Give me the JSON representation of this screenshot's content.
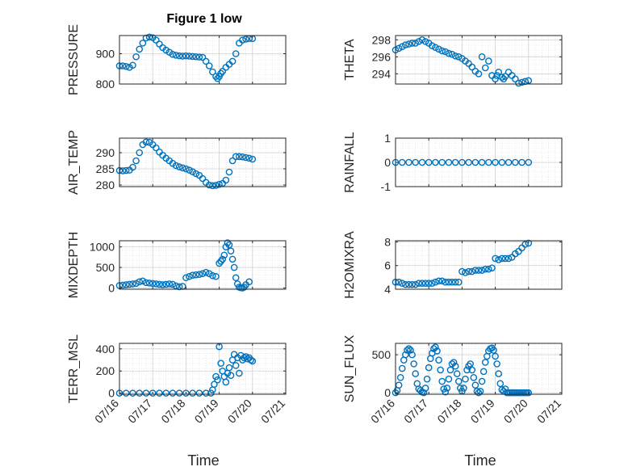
{
  "figure": {
    "title": "Figure 1 low",
    "marker_color": "#0072BD",
    "grid_color": "#DCDCDC",
    "x_tick_labels": [
      "07/16",
      "07/17",
      "07/18",
      "07/19",
      "07/20",
      "07/21"
    ],
    "xlabel": "Time"
  },
  "chart_data": [
    {
      "type": "scatter",
      "ylabel": "PRESSURE",
      "title": "Figure 1 low",
      "xlim": [
        16,
        21
      ],
      "ylim": [
        800,
        960
      ],
      "yticks": [
        800,
        900
      ],
      "x": [
        16.0,
        16.1,
        16.2,
        16.3,
        16.4,
        16.5,
        16.6,
        16.7,
        16.8,
        16.9,
        17.0,
        17.1,
        17.2,
        17.3,
        17.4,
        17.5,
        17.6,
        17.7,
        17.8,
        17.9,
        18.0,
        18.1,
        18.2,
        18.3,
        18.4,
        18.5,
        18.6,
        18.7,
        18.8,
        18.9,
        18.95,
        19.0,
        19.05,
        19.1,
        19.2,
        19.3,
        19.4,
        19.5,
        19.6,
        19.7,
        19.8,
        19.9,
        20.0
      ],
      "y": [
        860,
        860,
        858,
        855,
        862,
        890,
        915,
        935,
        952,
        955,
        953,
        945,
        932,
        920,
        912,
        905,
        898,
        895,
        893,
        892,
        893,
        892,
        891,
        890,
        889,
        888,
        875,
        860,
        840,
        825,
        818,
        825,
        835,
        842,
        855,
        865,
        875,
        900,
        935,
        945,
        948,
        950,
        950
      ]
    },
    {
      "type": "scatter",
      "ylabel": "THETA",
      "xlim": [
        16,
        21
      ],
      "ylim": [
        292.8,
        298.5
      ],
      "yticks": [
        294,
        296,
        298
      ],
      "x": [
        16.0,
        16.1,
        16.2,
        16.3,
        16.4,
        16.5,
        16.6,
        16.7,
        16.8,
        16.9,
        17.0,
        17.1,
        17.2,
        17.3,
        17.4,
        17.5,
        17.6,
        17.7,
        17.8,
        17.9,
        18.0,
        18.1,
        18.2,
        18.3,
        18.4,
        18.5,
        18.6,
        18.7,
        18.8,
        18.9,
        19.0,
        19.05,
        19.1,
        19.2,
        19.25,
        19.3,
        19.4,
        19.5,
        19.6,
        19.7,
        19.8,
        19.9,
        20.0
      ],
      "y": [
        296.8,
        297.0,
        297.2,
        297.4,
        297.5,
        297.6,
        297.6,
        297.8,
        298.0,
        297.8,
        297.6,
        297.3,
        297.1,
        296.9,
        296.7,
        296.6,
        296.4,
        296.3,
        296.1,
        296.0,
        295.8,
        295.5,
        295.2,
        294.8,
        294.3,
        294.0,
        296.0,
        294.7,
        295.5,
        293.8,
        293.4,
        293.8,
        294.2,
        293.6,
        293.4,
        293.7,
        294.2,
        293.8,
        293.4,
        292.9,
        293.0,
        293.1,
        293.2
      ]
    },
    {
      "type": "scatter",
      "ylabel": "AIR_TEMP",
      "xlim": [
        16,
        21
      ],
      "ylim": [
        279.5,
        294.5
      ],
      "yticks": [
        280,
        285,
        290
      ],
      "x": [
        16.0,
        16.1,
        16.2,
        16.3,
        16.4,
        16.5,
        16.6,
        16.7,
        16.8,
        16.9,
        17.0,
        17.1,
        17.2,
        17.3,
        17.4,
        17.5,
        17.6,
        17.7,
        17.8,
        17.9,
        18.0,
        18.1,
        18.2,
        18.3,
        18.4,
        18.5,
        18.6,
        18.7,
        18.8,
        18.9,
        19.0,
        19.1,
        19.2,
        19.3,
        19.4,
        19.5,
        19.6,
        19.7,
        19.8,
        19.9,
        20.0
      ],
      "y": [
        284.5,
        284.4,
        284.5,
        284.6,
        285.5,
        287.5,
        290.0,
        292.5,
        293.3,
        293.2,
        292.5,
        291.5,
        290.2,
        289.2,
        288.3,
        287.5,
        286.7,
        286.0,
        285.6,
        285.3,
        285.0,
        284.6,
        284.1,
        283.5,
        283.0,
        282.0,
        280.8,
        280.0,
        279.8,
        279.9,
        280.2,
        280.5,
        281.5,
        284.0,
        287.5,
        288.8,
        288.8,
        288.7,
        288.5,
        288.3,
        288.0
      ]
    },
    {
      "type": "scatter",
      "ylabel": "RAINFALL",
      "xlim": [
        16,
        21
      ],
      "ylim": [
        -1,
        1
      ],
      "yticks": [
        -1,
        0,
        1
      ],
      "x": [
        16.0,
        16.2,
        16.4,
        16.6,
        16.8,
        17.0,
        17.2,
        17.4,
        17.6,
        17.8,
        18.0,
        18.2,
        18.4,
        18.6,
        18.8,
        19.0,
        19.2,
        19.4,
        19.6,
        19.8,
        20.0
      ],
      "y": [
        0,
        0,
        0,
        0,
        0,
        0,
        0,
        0,
        0,
        0,
        0,
        0,
        0,
        0,
        0,
        0,
        0,
        0,
        0,
        0,
        0
      ]
    },
    {
      "type": "scatter",
      "ylabel": "MIXDEPTH",
      "xlim": [
        16,
        21
      ],
      "ylim": [
        -30,
        1150
      ],
      "yticks": [
        0,
        500,
        1000
      ],
      "x": [
        16.0,
        16.1,
        16.2,
        16.3,
        16.4,
        16.5,
        16.6,
        16.7,
        16.8,
        16.9,
        17.0,
        17.1,
        17.2,
        17.3,
        17.4,
        17.5,
        17.6,
        17.7,
        17.8,
        17.9,
        18.0,
        18.1,
        18.2,
        18.3,
        18.4,
        18.5,
        18.6,
        18.7,
        18.8,
        18.9,
        19.0,
        19.05,
        19.1,
        19.15,
        19.2,
        19.25,
        19.3,
        19.35,
        19.4,
        19.45,
        19.5,
        19.55,
        19.6,
        19.65,
        19.7,
        19.75,
        19.8,
        19.9
      ],
      "y": [
        60,
        70,
        80,
        90,
        100,
        110,
        150,
        170,
        130,
        120,
        110,
        100,
        90,
        80,
        90,
        100,
        90,
        50,
        30,
        40,
        250,
        280,
        310,
        320,
        330,
        350,
        380,
        350,
        300,
        280,
        600,
        650,
        700,
        800,
        1000,
        1100,
        1050,
        900,
        700,
        500,
        250,
        100,
        20,
        5,
        0,
        20,
        80,
        150
      ]
    },
    {
      "type": "scatter",
      "ylabel": "H2OMIXRA",
      "xlim": [
        16,
        21
      ],
      "ylim": [
        4,
        8.1
      ],
      "yticks": [
        4,
        6,
        8
      ],
      "x": [
        16.0,
        16.1,
        16.2,
        16.3,
        16.4,
        16.5,
        16.6,
        16.7,
        16.8,
        16.9,
        17.0,
        17.1,
        17.2,
        17.3,
        17.4,
        17.5,
        17.6,
        17.7,
        17.8,
        17.9,
        18.0,
        18.1,
        18.2,
        18.3,
        18.4,
        18.5,
        18.6,
        18.7,
        18.8,
        18.9,
        19.0,
        19.1,
        19.2,
        19.3,
        19.4,
        19.5,
        19.6,
        19.7,
        19.8,
        19.9,
        20.0
      ],
      "y": [
        4.6,
        4.6,
        4.5,
        4.4,
        4.4,
        4.4,
        4.4,
        4.5,
        4.5,
        4.5,
        4.5,
        4.5,
        4.6,
        4.7,
        4.7,
        4.6,
        4.6,
        4.6,
        4.6,
        4.6,
        5.5,
        5.4,
        5.5,
        5.5,
        5.6,
        5.6,
        5.6,
        5.7,
        5.7,
        5.8,
        6.6,
        6.5,
        6.6,
        6.6,
        6.6,
        6.7,
        7.0,
        7.2,
        7.5,
        7.8,
        7.9
      ]
    },
    {
      "type": "scatter",
      "ylabel": "TERR_MSL",
      "xlim": [
        16,
        21
      ],
      "ylim": [
        -10,
        450
      ],
      "yticks": [
        0,
        200,
        400
      ],
      "x": [
        16.0,
        16.2,
        16.4,
        16.6,
        16.8,
        17.0,
        17.2,
        17.4,
        17.6,
        17.8,
        18.0,
        18.2,
        18.4,
        18.6,
        18.75,
        18.8,
        18.85,
        18.9,
        18.95,
        19.0,
        19.05,
        19.1,
        19.15,
        19.2,
        19.25,
        19.3,
        19.35,
        19.4,
        19.45,
        19.5,
        19.55,
        19.6,
        19.65,
        19.7,
        19.75,
        19.8,
        19.85,
        19.9,
        19.95,
        20.0
      ],
      "y": [
        0,
        0,
        0,
        0,
        0,
        0,
        0,
        0,
        0,
        0,
        0,
        0,
        0,
        0,
        0,
        30,
        80,
        150,
        120,
        420,
        270,
        200,
        150,
        100,
        180,
        230,
        160,
        300,
        350,
        250,
        320,
        180,
        340,
        300,
        320,
        330,
        310,
        320,
        300,
        290
      ]
    },
    {
      "type": "scatter",
      "ylabel": "SUN_FLUX",
      "xlim": [
        16,
        21
      ],
      "ylim": [
        -20,
        650
      ],
      "yticks": [
        0,
        500
      ],
      "x": [
        16.0,
        16.05,
        16.1,
        16.15,
        16.2,
        16.25,
        16.3,
        16.35,
        16.4,
        16.45,
        16.5,
        16.55,
        16.6,
        16.65,
        16.7,
        16.75,
        16.8,
        16.85,
        16.9,
        16.95,
        17.0,
        17.05,
        17.1,
        17.15,
        17.2,
        17.25,
        17.3,
        17.35,
        17.4,
        17.45,
        17.5,
        17.55,
        17.6,
        17.65,
        17.7,
        17.75,
        17.8,
        17.85,
        17.9,
        17.95,
        18.0,
        18.05,
        18.1,
        18.15,
        18.2,
        18.25,
        18.3,
        18.35,
        18.4,
        18.45,
        18.5,
        18.55,
        18.6,
        18.65,
        18.7,
        18.75,
        18.8,
        18.85,
        18.9,
        18.95,
        19.0,
        19.05,
        19.1,
        19.15,
        19.2,
        19.25,
        19.3,
        19.35,
        19.4,
        19.45,
        19.5,
        19.55,
        19.6,
        19.65,
        19.7,
        19.75,
        19.8,
        19.85,
        19.9,
        19.95,
        20.0
      ],
      "y": [
        0,
        30,
        100,
        200,
        320,
        430,
        500,
        560,
        580,
        560,
        500,
        380,
        250,
        120,
        50,
        30,
        10,
        0,
        60,
        180,
        330,
        450,
        520,
        580,
        600,
        550,
        430,
        300,
        150,
        50,
        10,
        60,
        180,
        300,
        380,
        400,
        350,
        250,
        150,
        60,
        20,
        60,
        180,
        300,
        350,
        380,
        300,
        200,
        100,
        20,
        0,
        20,
        150,
        280,
        400,
        480,
        550,
        580,
        590,
        560,
        480,
        380,
        250,
        120,
        40,
        20,
        50,
        0,
        0,
        0,
        0,
        0,
        0,
        0,
        0,
        0,
        0,
        0,
        0,
        0,
        0
      ]
    }
  ]
}
